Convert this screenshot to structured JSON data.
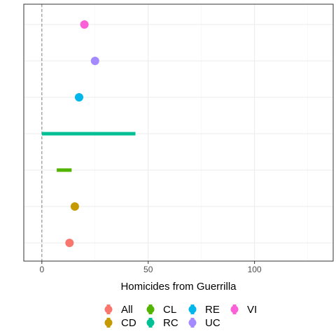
{
  "chart_data": {
    "type": "scatter",
    "xlabel": "Homicides from Guerrilla",
    "ylabel": "",
    "xlim": [
      -8.5,
      137
    ],
    "x_ticks": [
      0,
      50,
      100
    ],
    "x_tick_labels": [
      "0",
      "50",
      "100"
    ],
    "reference_line_x": 0,
    "grid": true,
    "legend_position": "bottom",
    "categories": [
      "All",
      "CD",
      "CL",
      "RC",
      "RE",
      "UC",
      "VI"
    ],
    "series": [
      {
        "name": "All",
        "color": "#F8766D",
        "low": 13,
        "high": 13,
        "point": 13
      },
      {
        "name": "CD",
        "color": "#C49A00",
        "low": 15.5,
        "high": 15.5,
        "point": 15.5
      },
      {
        "name": "CL",
        "color": "#53B400",
        "low": 7,
        "high": 14,
        "point": null
      },
      {
        "name": "RC",
        "color": "#00C094",
        "low": 0,
        "high": 44,
        "point": null
      },
      {
        "name": "RE",
        "color": "#00B6EB",
        "low": 17.5,
        "high": 17.5,
        "point": 17.5
      },
      {
        "name": "UC",
        "color": "#A58AFF",
        "low": 24,
        "high": 26,
        "point": 25
      },
      {
        "name": "VI",
        "color": "#FB61D7",
        "low": 20,
        "high": 20,
        "point": 20
      }
    ],
    "legend_rows": [
      [
        "All",
        "CL",
        "RE",
        "VI"
      ],
      [
        "CD",
        "RC",
        "UC"
      ]
    ]
  }
}
